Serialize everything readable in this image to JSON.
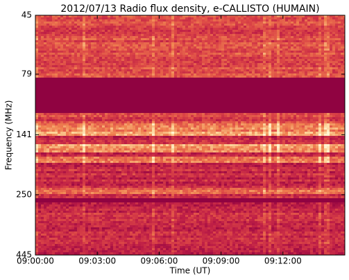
{
  "chart_data": {
    "type": "spectrogram",
    "title": "2012/07/13  Radio flux density, e-CALLISTO (HUMAIN)",
    "x_label": "Time (UT)",
    "y_label": "Frequency (MHz)",
    "xlim": [
      0,
      15
    ],
    "xticks": [
      {
        "value": 0,
        "label": "09:00:00"
      },
      {
        "value": 3,
        "label": "09:03:00"
      },
      {
        "value": 6,
        "label": "09:06:00"
      },
      {
        "value": 9,
        "label": "09:09:00"
      },
      {
        "value": 12,
        "label": "09:12:00"
      }
    ],
    "ylim": [
      45,
      445
    ],
    "yticks": [
      45,
      79,
      141,
      250,
      445
    ],
    "y_log_scale": true,
    "y_inverted": true
  }
}
